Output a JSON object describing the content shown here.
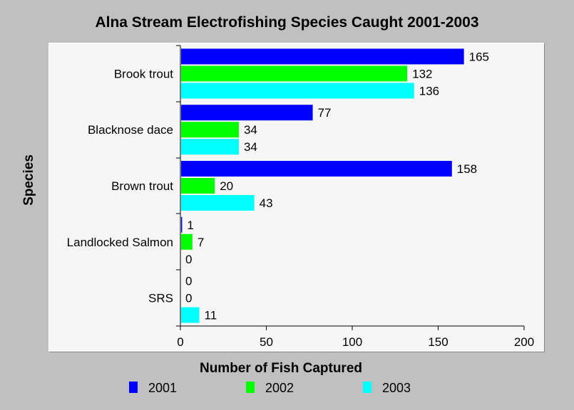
{
  "chart_data": {
    "type": "bar",
    "orientation": "horizontal",
    "title": "Alna Stream Electrofishing Species Caught 2001-2003",
    "xlabel": "Number of Fish Captured",
    "ylabel": "Species",
    "categories": [
      "Brook trout",
      "Blacknose dace",
      "Brown trout",
      "Landlocked Salmon",
      "SRS"
    ],
    "series": [
      {
        "name": "2001",
        "color": "#0000ff",
        "values": [
          165,
          77,
          158,
          1,
          0
        ]
      },
      {
        "name": "2002",
        "color": "#00ff00",
        "values": [
          132,
          34,
          20,
          7,
          0
        ]
      },
      {
        "name": "2003",
        "color": "#00ffff",
        "values": [
          136,
          34,
          43,
          0,
          11
        ]
      }
    ],
    "xlim": [
      0,
      200
    ],
    "xticks": [
      "0",
      "50",
      "100",
      "150",
      "200"
    ],
    "grid": false,
    "legend_position": "bottom"
  }
}
